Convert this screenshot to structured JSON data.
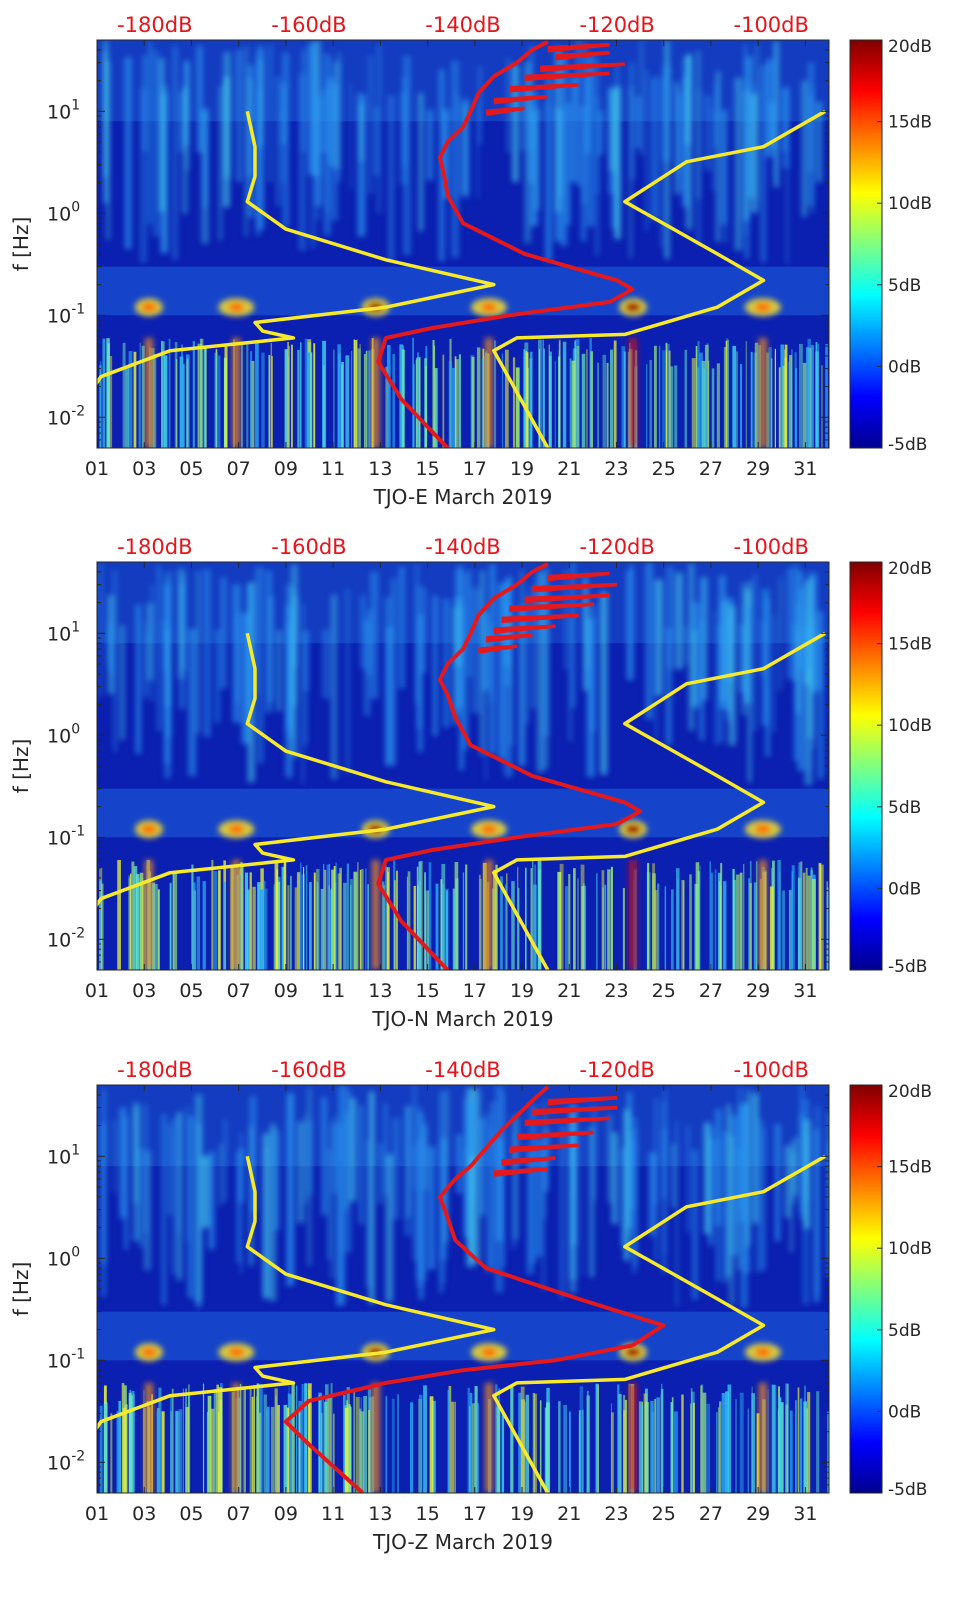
{
  "colors": {
    "yellow": "#f7e92c",
    "red": "#e3191d",
    "dbtext": "#e8141b",
    "bg": "#0a1aa8"
  },
  "colorbar": {
    "ticks": [
      "20dB",
      "15dB",
      "10dB",
      "5dB",
      "0dB",
      "-5dB"
    ],
    "min": -5,
    "max": 20,
    "stops": [
      "#00008f",
      "#0000ff",
      "#0080ff",
      "#00ffff",
      "#80ff80",
      "#ffff00",
      "#ff8000",
      "#ff0000",
      "#800000"
    ]
  },
  "chart_data": [
    {
      "type": "spectrogram",
      "title": "TJO-E March 2019",
      "xlabel": "TJO-E March 2019",
      "ylabel": "f [Hz]",
      "x_ticks": [
        "01",
        "03",
        "05",
        "07",
        "09",
        "11",
        "13",
        "15",
        "17",
        "19",
        "21",
        "23",
        "25",
        "27",
        "29",
        "31"
      ],
      "xlim": [
        1,
        32
      ],
      "y_ticks": [
        "10^1",
        "10^0",
        "10^-1",
        "10^-2"
      ],
      "ylim_hz": [
        0.005,
        50
      ],
      "top_axis_ticks": [
        "-180dB",
        "-160dB",
        "-140dB",
        "-120dB",
        "-100dB"
      ],
      "top_axis_range_db": [
        -187.5,
        -92.5
      ],
      "series": [
        {
          "name": "NLNM/NHNM model (yellow)",
          "color": "yellow",
          "points": [
            [
              -188,
              0.005
            ],
            [
              -189,
              0.015
            ],
            [
              -187,
              0.025
            ],
            [
              -178,
              0.045
            ],
            [
              -162,
              0.06
            ],
            [
              -166,
              0.07
            ],
            [
              -167,
              0.085
            ],
            [
              -150,
              0.12
            ],
            [
              -136,
              0.2
            ],
            [
              -150,
              0.35
            ],
            [
              -163,
              0.7
            ],
            [
              -168,
              1.3
            ],
            [
              -167,
              2.3
            ],
            [
              -167,
              4.5
            ],
            [
              -168,
              10
            ]
          ]
        },
        {
          "name": "NLNM/NHNM model (yellow)",
          "color": "yellow",
          "points": [
            [
              -129,
              0.005
            ],
            [
              -136,
              0.045
            ],
            [
              -133,
              0.06
            ],
            [
              -119,
              0.065
            ],
            [
              -107,
              0.12
            ],
            [
              -101,
              0.22
            ],
            [
              -107,
              0.4
            ],
            [
              -119,
              1.3
            ],
            [
              -111,
              3.2
            ],
            [
              -101,
              4.5
            ],
            [
              -93,
              10
            ]
          ]
        },
        {
          "name": "median PSD (red)",
          "color": "red",
          "points": [
            [
              -142,
              0.005
            ],
            [
              -148,
              0.015
            ],
            [
              -151,
              0.035
            ],
            [
              -150,
              0.06
            ],
            [
              -144,
              0.075
            ],
            [
              -134,
              0.1
            ],
            [
              -121,
              0.135
            ],
            [
              -118,
              0.18
            ],
            [
              -120,
              0.22
            ],
            [
              -132,
              0.4
            ],
            [
              -140,
              0.8
            ],
            [
              -142,
              1.5
            ],
            [
              -142.5,
              2.5
            ],
            [
              -143,
              3.5
            ],
            [
              -142,
              5
            ],
            [
              -140,
              7
            ],
            [
              -139,
              10
            ],
            [
              -138,
              15
            ],
            [
              -136,
              22
            ],
            [
              -133,
              30
            ],
            [
              -131,
              40
            ],
            [
              -129,
              48
            ]
          ],
          "spikes": [
            [
              10,
              -137,
              -132
            ],
            [
              13,
              -136,
              -129
            ],
            [
              17,
              -134,
              -125
            ],
            [
              22,
              -132,
              -121
            ],
            [
              27,
              -130,
              -119
            ],
            [
              35,
              -128,
              -121
            ],
            [
              42,
              -129,
              -121
            ]
          ]
        }
      ]
    },
    {
      "type": "spectrogram",
      "title": "TJO-N March 2019",
      "xlabel": "TJO-N March 2019",
      "ylabel": "f [Hz]",
      "x_ticks": [
        "01",
        "03",
        "05",
        "07",
        "09",
        "11",
        "13",
        "15",
        "17",
        "19",
        "21",
        "23",
        "25",
        "27",
        "29",
        "31"
      ],
      "xlim": [
        1,
        32
      ],
      "y_ticks": [
        "10^1",
        "10^0",
        "10^-1",
        "10^-2"
      ],
      "ylim_hz": [
        0.005,
        50
      ],
      "top_axis_ticks": [
        "-180dB",
        "-160dB",
        "-140dB",
        "-120dB",
        "-100dB"
      ],
      "top_axis_range_db": [
        -187.5,
        -92.5
      ],
      "series": [
        {
          "name": "NLNM/NHNM model (yellow)",
          "color": "yellow",
          "points": [
            [
              -188,
              0.005
            ],
            [
              -189,
              0.015
            ],
            [
              -187,
              0.025
            ],
            [
              -178,
              0.045
            ],
            [
              -162,
              0.06
            ],
            [
              -166,
              0.07
            ],
            [
              -167,
              0.085
            ],
            [
              -150,
              0.12
            ],
            [
              -136,
              0.2
            ],
            [
              -150,
              0.35
            ],
            [
              -163,
              0.7
            ],
            [
              -168,
              1.3
            ],
            [
              -167,
              2.3
            ],
            [
              -167,
              4.5
            ],
            [
              -168,
              10
            ]
          ]
        },
        {
          "name": "NLNM/NHNM model (yellow)",
          "color": "yellow",
          "points": [
            [
              -129,
              0.005
            ],
            [
              -136,
              0.045
            ],
            [
              -133,
              0.06
            ],
            [
              -119,
              0.065
            ],
            [
              -107,
              0.12
            ],
            [
              -101,
              0.22
            ],
            [
              -107,
              0.4
            ],
            [
              -119,
              1.3
            ],
            [
              -111,
              3.2
            ],
            [
              -101,
              4.5
            ],
            [
              -93,
              10
            ]
          ]
        },
        {
          "name": "median PSD (red)",
          "color": "red",
          "points": [
            [
              -142,
              0.005
            ],
            [
              -148,
              0.015
            ],
            [
              -151,
              0.035
            ],
            [
              -150,
              0.06
            ],
            [
              -144,
              0.075
            ],
            [
              -133,
              0.1
            ],
            [
              -120,
              0.135
            ],
            [
              -117,
              0.18
            ],
            [
              -119,
              0.22
            ],
            [
              -131,
              0.4
            ],
            [
              -139,
              0.8
            ],
            [
              -141,
              1.5
            ],
            [
              -142,
              2.5
            ],
            [
              -143,
              3.5
            ],
            [
              -142,
              5
            ],
            [
              -140,
              7
            ],
            [
              -139,
              10
            ],
            [
              -138,
              15
            ],
            [
              -136,
              22
            ],
            [
              -133,
              30
            ],
            [
              -131,
              40
            ],
            [
              -129,
              48
            ]
          ],
          "spikes": [
            [
              7,
              -138,
              -133
            ],
            [
              9,
              -137,
              -131
            ],
            [
              11,
              -136,
              -128
            ],
            [
              14,
              -135,
              -125
            ],
            [
              18,
              -134,
              -123
            ],
            [
              22,
              -132,
              -121
            ],
            [
              28,
              -131,
              -120
            ],
            [
              36,
              -129,
              -121
            ]
          ]
        }
      ]
    },
    {
      "type": "spectrogram",
      "title": "TJO-Z March 2019",
      "xlabel": "TJO-Z March 2019",
      "ylabel": "f [Hz]",
      "x_ticks": [
        "01",
        "03",
        "05",
        "07",
        "09",
        "11",
        "13",
        "15",
        "17",
        "19",
        "21",
        "23",
        "25",
        "27",
        "29",
        "31"
      ],
      "xlim": [
        1,
        32
      ],
      "y_ticks": [
        "10^1",
        "10^0",
        "10^-1",
        "10^-2"
      ],
      "ylim_hz": [
        0.005,
        50
      ],
      "top_axis_ticks": [
        "-180dB",
        "-160dB",
        "-140dB",
        "-120dB",
        "-100dB"
      ],
      "top_axis_range_db": [
        -187.5,
        -92.5
      ],
      "series": [
        {
          "name": "NLNM/NHNM model (yellow)",
          "color": "yellow",
          "points": [
            [
              -188,
              0.005
            ],
            [
              -189,
              0.015
            ],
            [
              -187,
              0.025
            ],
            [
              -178,
              0.045
            ],
            [
              -162,
              0.06
            ],
            [
              -166,
              0.07
            ],
            [
              -167,
              0.085
            ],
            [
              -150,
              0.12
            ],
            [
              -136,
              0.2
            ],
            [
              -150,
              0.35
            ],
            [
              -163,
              0.7
            ],
            [
              -168,
              1.3
            ],
            [
              -167,
              2.3
            ],
            [
              -167,
              4.5
            ],
            [
              -168,
              10
            ]
          ]
        },
        {
          "name": "NLNM/NHNM model (yellow)",
          "color": "yellow",
          "points": [
            [
              -129,
              0.005
            ],
            [
              -136,
              0.045
            ],
            [
              -133,
              0.06
            ],
            [
              -119,
              0.065
            ],
            [
              -107,
              0.12
            ],
            [
              -101,
              0.22
            ],
            [
              -107,
              0.4
            ],
            [
              -119,
              1.3
            ],
            [
              -111,
              3.2
            ],
            [
              -101,
              4.5
            ],
            [
              -93,
              10
            ]
          ]
        },
        {
          "name": "median PSD (red)",
          "color": "red",
          "points": [
            [
              -153,
              0.005
            ],
            [
              -160,
              0.015
            ],
            [
              -163,
              0.025
            ],
            [
              -160,
              0.04
            ],
            [
              -150,
              0.06
            ],
            [
              -140,
              0.08
            ],
            [
              -128,
              0.1
            ],
            [
              -118,
              0.14
            ],
            [
              -114,
              0.22
            ],
            [
              -125,
              0.4
            ],
            [
              -137,
              0.8
            ],
            [
              -141,
              1.5
            ],
            [
              -142,
              2.5
            ],
            [
              -143,
              4
            ],
            [
              -141,
              6
            ],
            [
              -139,
              8
            ],
            [
              -137,
              12
            ],
            [
              -135,
              18
            ],
            [
              -133,
              25
            ],
            [
              -131,
              35
            ],
            [
              -129,
              48
            ]
          ],
          "spikes": [
            [
              7,
              -136,
              -129
            ],
            [
              9,
              -135,
              -128
            ],
            [
              12,
              -134,
              -125
            ],
            [
              16,
              -133,
              -123
            ],
            [
              22,
              -132,
              -121
            ],
            [
              28,
              -131,
              -120
            ],
            [
              35,
              -129,
              -120
            ]
          ]
        }
      ]
    }
  ]
}
